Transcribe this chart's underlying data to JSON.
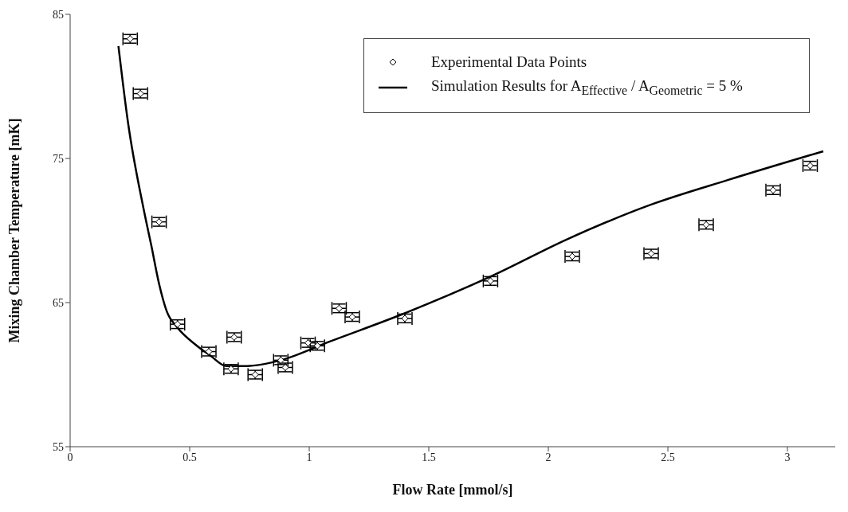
{
  "chart_data": {
    "type": "scatter",
    "xlabel": "Flow Rate [mmol/s]",
    "ylabel": "Mixing Chamber Temperature [mK]",
    "xlim": [
      0,
      3.2
    ],
    "xticks": [
      0,
      0.5,
      1,
      1.5,
      2,
      2.5,
      3
    ],
    "ylim": [
      55,
      85
    ],
    "yticks": [
      55,
      65,
      75,
      85
    ],
    "grid": false,
    "legend": "top right",
    "series": [
      {
        "name": "Experimental Data Points",
        "color": "#000000",
        "marker": "diamond",
        "x": [
          0.251,
          0.294,
          0.372,
          0.449,
          0.58,
          0.686,
          0.673,
          0.774,
          0.881,
          0.9,
          0.995,
          1.034,
          1.125,
          1.18,
          1.4,
          1.758,
          2.1,
          2.43,
          2.66,
          2.94,
          3.095
        ],
        "values": [
          83.3,
          79.5,
          70.6,
          63.5,
          61.6,
          62.6,
          60.4,
          60.0,
          61.0,
          60.5,
          62.2,
          62.0,
          64.6,
          64.0,
          63.9,
          66.5,
          68.2,
          68.4,
          70.4,
          72.8,
          74.5
        ],
        "errors": [
          0.3,
          0.3,
          0.3,
          0.3,
          0.3,
          0.3,
          0.3,
          0.3,
          0.3,
          0.3,
          0.3,
          0.3,
          0.3,
          0.3,
          0.3,
          0.3,
          0.3,
          0.3,
          0.3,
          0.3,
          0.3
        ],
        "xerrors": [
          0.03,
          0.03,
          0.03,
          0.03,
          0.03,
          0.03,
          0.03,
          0.03,
          0.03,
          0.03,
          0.03,
          0.03,
          0.03,
          0.03,
          0.03,
          0.03,
          0.03,
          0.03,
          0.03,
          0.03,
          0.03
        ]
      },
      {
        "type": "line",
        "name": "Simulation Results for A$_{Effective}$ / A$_{Geometric}$ = 5 %",
        "color": "#000000",
        "marker": "none",
        "line_style": "solid",
        "x": [
          0.202,
          0.242,
          0.306,
          0.339,
          0.372,
          0.404,
          0.447,
          0.523,
          0.588,
          0.653,
          0.739,
          0.881,
          1.086,
          1.39,
          1.758,
          2.08,
          2.43,
          2.75,
          3.15
        ],
        "values": [
          82.8,
          77.5,
          71.6,
          69.0,
          66.3,
          64.4,
          63.3,
          62.1,
          61.3,
          60.6,
          60.6,
          61.0,
          62.3,
          64.2,
          66.8,
          69.4,
          71.8,
          73.5,
          75.5
        ]
      }
    ]
  }
}
